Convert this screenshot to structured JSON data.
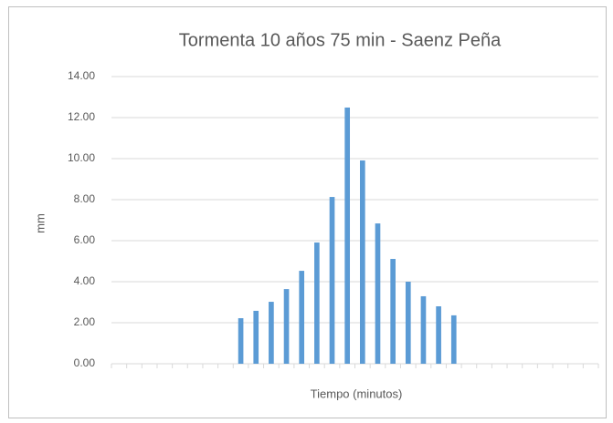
{
  "chart_data": {
    "type": "bar",
    "title": "Tormenta 10 años 75 min - Saenz Peña",
    "y_label": "mm",
    "x_label": "Tiempo (minutos)",
    "categories": [
      null,
      null,
      null,
      null,
      null,
      null,
      null,
      null,
      null,
      null,
      null,
      null,
      null,
      null,
      null,
      null,
      null,
      null,
      null,
      null,
      null,
      null,
      null,
      null,
      null,
      null,
      null,
      null,
      null,
      null,
      null,
      null
    ],
    "values": [
      0,
      0,
      0,
      0,
      0,
      0,
      0,
      0,
      2.22,
      2.58,
      3.02,
      3.64,
      4.53,
      5.91,
      8.13,
      12.49,
      9.91,
      6.84,
      5.11,
      4.0,
      3.29,
      2.8,
      2.36,
      0,
      0,
      0,
      0,
      0,
      0,
      0,
      0,
      0
    ],
    "color": "#5b9bd5",
    "ylim": [
      0,
      14
    ],
    "yticks": [
      {
        "value": 0,
        "label": "0.00"
      },
      {
        "value": 2,
        "label": "2.00"
      },
      {
        "value": 4,
        "label": "4.00"
      },
      {
        "value": 6,
        "label": "6.00"
      },
      {
        "value": 8,
        "label": "8.00"
      },
      {
        "value": 10,
        "label": "10.00"
      },
      {
        "value": 12,
        "label": "12.00"
      },
      {
        "value": 14,
        "label": "14.00"
      }
    ],
    "grid": true
  }
}
